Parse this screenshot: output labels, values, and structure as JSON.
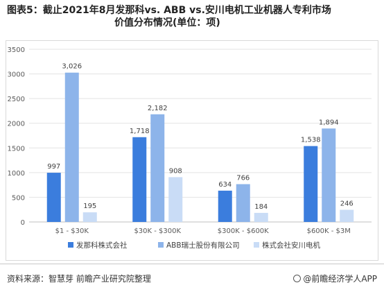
{
  "title": {
    "line1": "图表5：截止2021年8月发那科vs. ABB vs.安川电机工业机器人专利市场",
    "line2": "价值分布情况(单位：项)"
  },
  "source": "资料来源：智慧芽 前瞻产业研究院整理",
  "brand": "@前瞻经济学人APP",
  "chart_data": {
    "type": "bar",
    "categories": [
      "$1 - $30K",
      "$30K - $300K",
      "$300K - $600K",
      "$600K - $3M"
    ],
    "series": [
      {
        "name": "发那科株式会社",
        "values": [
          997,
          1718,
          634,
          1538
        ],
        "color": "#3b7ddd"
      },
      {
        "name": "ABB瑞士股份有限公司",
        "values": [
          3026,
          2182,
          766,
          1894
        ],
        "color": "#8db4ea"
      },
      {
        "name": "株式会社安川电机",
        "values": [
          195,
          908,
          184,
          246
        ],
        "color": "#c9dcf6"
      }
    ],
    "ylim": [
      0,
      3500
    ],
    "yticks": [
      0,
      500,
      1000,
      1500,
      2000,
      2500,
      3000,
      3500
    ],
    "grid": true,
    "legend": "bottom"
  }
}
